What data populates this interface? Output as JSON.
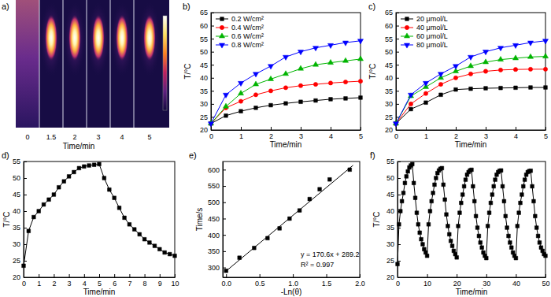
{
  "chart_data": [
    {
      "type": "thermal_image",
      "title": "a)",
      "categories": [
        "0",
        "1.5",
        "2",
        "3",
        "4",
        "5"
      ],
      "xlabel": "Time/min"
    },
    {
      "type": "line",
      "title": "b)",
      "xlabel": "Time/min",
      "ylabel": "T/°C",
      "x": [
        0,
        0.5,
        1,
        1.5,
        2,
        2.5,
        3,
        3.5,
        4,
        4.5,
        5
      ],
      "xlim": [
        0,
        5
      ],
      "ylim": [
        20,
        65
      ],
      "xticks": [
        0,
        1,
        2,
        3,
        4,
        5
      ],
      "yticks": [
        20,
        25,
        30,
        35,
        40,
        45,
        50,
        55,
        60,
        65
      ],
      "legend": "upper left",
      "series": [
        {
          "name": "0.2 W/cm²",
          "color": "#000000",
          "marker": "square",
          "line_style": "solid",
          "values": [
            22.5,
            25.5,
            27.2,
            28.5,
            29.5,
            30.2,
            30.8,
            31.3,
            31.8,
            32.1,
            32.4
          ]
        },
        {
          "name": "0.4 W/cm²",
          "color": "#ff0000",
          "marker": "circle",
          "line_style": "solid",
          "values": [
            22.5,
            28.5,
            31,
            33.5,
            35,
            36.2,
            37,
            37.5,
            38,
            38.4,
            38.7
          ]
        },
        {
          "name": "0.6 W/cm²",
          "color": "#00b400",
          "marker": "triangle-up",
          "line_style": "solid",
          "values": [
            22.5,
            29,
            34,
            37.5,
            39.5,
            41.5,
            43.5,
            45,
            45.8,
            46.5,
            47.2
          ]
        },
        {
          "name": "0.8 W/cm²",
          "color": "#0000ff",
          "marker": "triangle-down",
          "line_style": "solid",
          "values": [
            22.5,
            33.5,
            38,
            41.5,
            44.5,
            48,
            50,
            51.5,
            52.5,
            53.5,
            54.2
          ]
        }
      ]
    },
    {
      "type": "line",
      "title": "c)",
      "xlabel": "Time/min",
      "ylabel": "T/°C",
      "x": [
        0,
        0.5,
        1,
        1.5,
        2,
        2.5,
        3,
        3.5,
        4,
        4.5,
        5
      ],
      "xlim": [
        0,
        5
      ],
      "ylim": [
        20,
        65
      ],
      "xticks": [
        0,
        1,
        2,
        3,
        4,
        5
      ],
      "yticks": [
        20,
        25,
        30,
        35,
        40,
        45,
        50,
        55,
        60,
        65
      ],
      "legend": "upper left",
      "series": [
        {
          "name": "20 μmol/L",
          "color": "#000000",
          "marker": "square",
          "line_style": "solid",
          "values": [
            22.5,
            28,
            30.5,
            33.5,
            35.5,
            35.8,
            36,
            36.1,
            36.2,
            36.3,
            36.3
          ]
        },
        {
          "name": "40 μmol/L",
          "color": "#ff0000",
          "marker": "circle",
          "line_style": "solid",
          "values": [
            22.5,
            30,
            34,
            37.5,
            40,
            41.5,
            42.5,
            43,
            43.2,
            43.3,
            43.3
          ]
        },
        {
          "name": "60 μmol/L",
          "color": "#00b400",
          "marker": "triangle-up",
          "line_style": "solid",
          "values": [
            22.5,
            33,
            36.5,
            40,
            42.5,
            44.5,
            46,
            47,
            47.5,
            48,
            48.2
          ]
        },
        {
          "name": "80 μmol/L",
          "color": "#0000ff",
          "marker": "triangle-down",
          "line_style": "solid",
          "values": [
            22.5,
            33.5,
            38,
            41.5,
            44.5,
            48,
            50,
            51.5,
            52.5,
            53.5,
            54.2
          ]
        }
      ]
    },
    {
      "type": "line",
      "title": "d)",
      "xlabel": "Time/min",
      "ylabel": "T/°C",
      "x": [
        0,
        0.33,
        0.67,
        1,
        1.33,
        1.67,
        2,
        2.33,
        2.67,
        3,
        3.33,
        3.67,
        4,
        4.33,
        4.67,
        5,
        5.33,
        5.67,
        6,
        6.33,
        6.67,
        7,
        7.33,
        7.67,
        8,
        8.33,
        8.67,
        9,
        9.33,
        9.67,
        10
      ],
      "xlim": [
        0,
        10
      ],
      "ylim": [
        20,
        55
      ],
      "xticks": [
        0,
        1,
        2,
        3,
        4,
        5,
        6,
        7,
        8,
        9,
        10
      ],
      "yticks": [
        20,
        25,
        30,
        35,
        40,
        45,
        50,
        55
      ],
      "series": [
        {
          "color": "#000000",
          "marker": "square",
          "line_style": "solid",
          "values": [
            23.5,
            34,
            38.2,
            40,
            42,
            43.5,
            45,
            47.2,
            49,
            50.5,
            51.8,
            53,
            53.5,
            53.8,
            54,
            54.2,
            50,
            46.5,
            44,
            41,
            38,
            36,
            34.5,
            33,
            31.5,
            30.5,
            29.5,
            28.5,
            27.5,
            27,
            26.5
          ]
        }
      ]
    },
    {
      "type": "scatter",
      "title": "e)",
      "xlabel": "-Ln(θ)",
      "ylabel": "Time/s",
      "xlim": [
        -0.05,
        2.0
      ],
      "ylim": [
        270,
        625
      ],
      "xticks": [
        {
          "value": 0,
          "label": "0.0"
        },
        0.5,
        {
          "value": 1,
          "label": "1.0"
        },
        1.5,
        {
          "value": 2,
          "label": "2.0"
        }
      ],
      "yticks": [
        300,
        350,
        400,
        450,
        500,
        550,
        600
      ],
      "annotations": [
        "y = 170.6x + 289.2",
        "R² = 0.997"
      ],
      "series": [
        {
          "type": "scatter",
          "color": "#000000",
          "marker": "square",
          "x": [
            0,
            0.2,
            0.42,
            0.62,
            0.8,
            0.95,
            1.1,
            1.25,
            1.4,
            1.55,
            1.85
          ],
          "values": [
            290,
            330,
            360,
            390,
            420,
            450,
            475,
            510,
            540,
            570,
            600
          ]
        },
        {
          "type": "line",
          "color": "#000000",
          "marker": "none",
          "line_style": "solid",
          "x": [
            0,
            1.9
          ],
          "values": [
            289.2,
            613.3
          ]
        }
      ]
    },
    {
      "type": "line",
      "title": "f)",
      "xlabel": "Time/min",
      "ylabel": "T/°C",
      "x": [
        0,
        0.5,
        1,
        1.5,
        2,
        2.5,
        3,
        3.5,
        4,
        4.5,
        5,
        5.5,
        6,
        6.5,
        7,
        7.5,
        8,
        8.5,
        9,
        9.5,
        10,
        10.5,
        11,
        11.5,
        12,
        12.5,
        13,
        13.5,
        14,
        14.5,
        15,
        15.5,
        16,
        16.5,
        17,
        17.5,
        18,
        18.5,
        19,
        19.5,
        20,
        20.5,
        21,
        21.5,
        22,
        22.5,
        23,
        23.5,
        24,
        24.5,
        25,
        25.5,
        26,
        26.5,
        27,
        27.5,
        28,
        28.5,
        29,
        29.5,
        30,
        30.5,
        31,
        31.5,
        32,
        32.5,
        33,
        33.5,
        34,
        34.5,
        35,
        35.5,
        36,
        36.5,
        37,
        37.5,
        38,
        38.5,
        39,
        39.5,
        40,
        40.5,
        41,
        41.5,
        42,
        42.5,
        43,
        43.5,
        44,
        44.5,
        45,
        45.5,
        46,
        46.5,
        47,
        47.5,
        48,
        48.5,
        49,
        49.5,
        50
      ],
      "xlim": [
        0,
        50
      ],
      "ylim": [
        20,
        55
      ],
      "xticks": [
        0,
        10,
        20,
        30,
        40,
        50
      ],
      "yticks": [
        20,
        25,
        30,
        35,
        40,
        45,
        50,
        55
      ],
      "series": [
        {
          "color": "#000000",
          "marker": "square",
          "line_style": "solid",
          "values": [
            24,
            36,
            40,
            43,
            45.5,
            48.5,
            50.5,
            52,
            53.2,
            53.8,
            54.2,
            48.5,
            44,
            39.5,
            36,
            33.5,
            31.5,
            30,
            28.5,
            27.5,
            26.5,
            36,
            40,
            43,
            45.5,
            48,
            50,
            51.5,
            52.3,
            52.8,
            53,
            48,
            43.5,
            39,
            35.5,
            33,
            31,
            29.5,
            28,
            27,
            26,
            35.5,
            39.5,
            42.5,
            45,
            47.5,
            49.5,
            51,
            51.8,
            52.3,
            52.5,
            47.5,
            43,
            38.5,
            35,
            32.5,
            30.5,
            29,
            27.5,
            26.5,
            25.8,
            35.5,
            39.5,
            42.5,
            45,
            47.5,
            49.5,
            51,
            51.8,
            52.2,
            52.3,
            47.5,
            43,
            38.5,
            35,
            32.5,
            30.5,
            29,
            27.5,
            26.5,
            25.8,
            35.5,
            39.5,
            42.5,
            45,
            47.5,
            49.5,
            51,
            51.8,
            52.1,
            52.2,
            47.5,
            43,
            38.5,
            35,
            32.5,
            30.5,
            29,
            28,
            27,
            26.5
          ]
        }
      ]
    }
  ]
}
